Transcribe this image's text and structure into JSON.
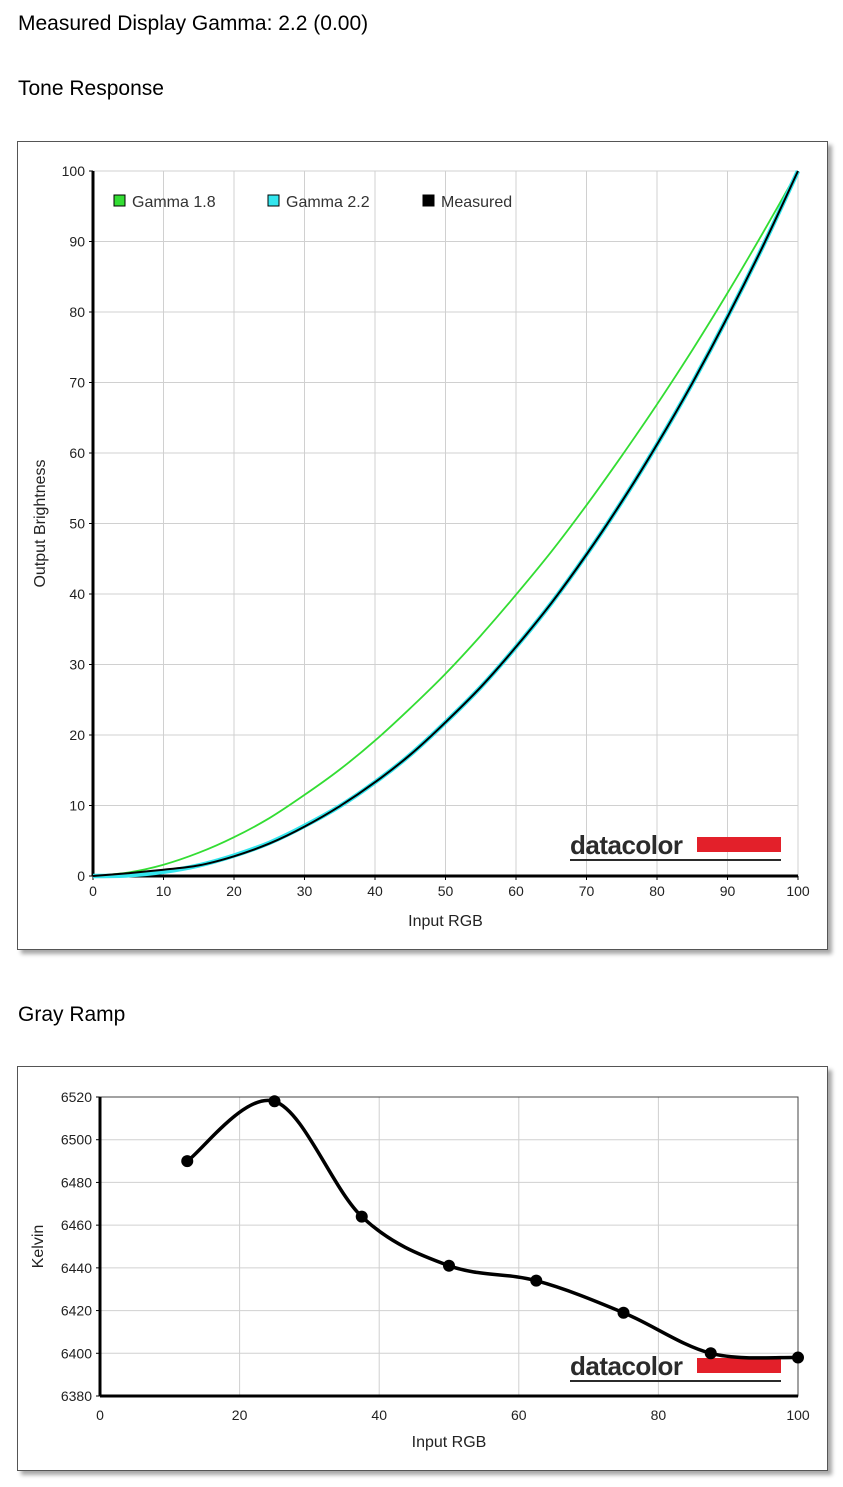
{
  "page": {
    "measured_gamma_heading": "Measured Display Gamma: 2.2 (0.00)",
    "tone_heading": "Tone Response",
    "gray_heading": "Gray Ramp"
  },
  "watermark": {
    "text": "datacolor",
    "bar_color": "#e3202a"
  },
  "chart_data": [
    {
      "type": "line",
      "xlabel": "Input RGB",
      "ylabel": "Output Brightness",
      "xlim": [
        0,
        100
      ],
      "ylim": [
        0,
        100
      ],
      "xticks": [
        0,
        10,
        20,
        30,
        40,
        50,
        60,
        70,
        80,
        90,
        100
      ],
      "yticks": [
        0,
        10,
        20,
        30,
        40,
        50,
        60,
        70,
        80,
        90,
        100
      ],
      "grid": true,
      "legend_position": "top-left",
      "x": [
        0,
        5,
        10,
        15,
        20,
        25,
        30,
        35,
        40,
        45,
        50,
        55,
        60,
        65,
        70,
        75,
        80,
        85,
        90,
        95,
        100
      ],
      "series": [
        {
          "name": "Gamma 1.8",
          "color": "#33dd33",
          "values": [
            0,
            0.5,
            1.6,
            3.3,
            5.5,
            8.2,
            11.5,
            15.1,
            19.2,
            23.8,
            28.7,
            34.1,
            39.9,
            46.0,
            52.6,
            59.6,
            66.9,
            74.6,
            82.7,
            91.2,
            100
          ]
        },
        {
          "name": "Gamma 2.2",
          "color": "#33e6ee",
          "values": [
            0,
            0.1,
            0.6,
            1.5,
            2.9,
            4.7,
            7.1,
            9.9,
            13.3,
            17.2,
            21.8,
            26.8,
            32.5,
            38.7,
            45.6,
            53.1,
            61.2,
            69.9,
            79.3,
            89.3,
            100
          ]
        },
        {
          "name": "Measured",
          "color": "#000000",
          "values": [
            0,
            0.4,
            0.9,
            1.5,
            2.8,
            4.6,
            7.0,
            9.9,
            13.3,
            17.2,
            21.8,
            26.8,
            32.5,
            38.7,
            45.6,
            53.1,
            61.2,
            69.9,
            79.3,
            89.3,
            100
          ]
        }
      ]
    },
    {
      "type": "line",
      "xlabel": "Input RGB",
      "ylabel": "Kelvin",
      "xlim": [
        0,
        100
      ],
      "ylim": [
        6380,
        6520
      ],
      "xticks": [
        0,
        20,
        40,
        60,
        80,
        100
      ],
      "yticks": [
        6380,
        6400,
        6420,
        6440,
        6460,
        6480,
        6500,
        6520
      ],
      "grid": true,
      "series": [
        {
          "color": "#000000",
          "x": [
            12.5,
            25,
            37.5,
            50,
            62.5,
            75,
            87.5,
            100
          ],
          "values": [
            6490,
            6518,
            6464,
            6441,
            6434,
            6419,
            6400,
            6398
          ]
        }
      ]
    }
  ]
}
